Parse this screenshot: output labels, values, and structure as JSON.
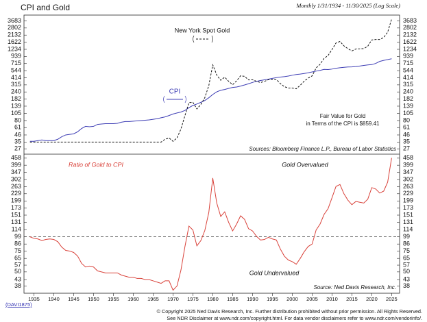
{
  "chart_data": [
    {
      "type": "line",
      "title": "CPI and Gold",
      "subtitle": "Monthly 1/31/1934 - 11/30/2025 (Log Scale)",
      "log_scale": true,
      "grid": false,
      "x": [
        1934,
        1935,
        1936,
        1937,
        1938,
        1939,
        1940,
        1941,
        1942,
        1943,
        1944,
        1945,
        1946,
        1947,
        1948,
        1949,
        1950,
        1951,
        1952,
        1953,
        1954,
        1955,
        1956,
        1957,
        1958,
        1959,
        1960,
        1961,
        1962,
        1963,
        1964,
        1965,
        1966,
        1967,
        1968,
        1969,
        1970,
        1971,
        1972,
        1973,
        1974,
        1975,
        1976,
        1977,
        1978,
        1979,
        1980,
        1981,
        1982,
        1983,
        1984,
        1985,
        1986,
        1987,
        1988,
        1989,
        1990,
        1991,
        1992,
        1993,
        1994,
        1995,
        1996,
        1997,
        1998,
        1999,
        2000,
        2001,
        2002,
        2003,
        2004,
        2005,
        2006,
        2007,
        2008,
        2009,
        2010,
        2011,
        2012,
        2013,
        2014,
        2015,
        2016,
        2017,
        2018,
        2019,
        2020,
        2021,
        2022,
        2023,
        2024,
        2025
      ],
      "xlim": [
        1932.5,
        2027
      ],
      "ylim": [
        22,
        4600
      ],
      "yticks": [
        27,
        35,
        46,
        61,
        80,
        105,
        139,
        182,
        240,
        315,
        414,
        544,
        715,
        939,
        1234,
        1622,
        2132,
        2802,
        3683
      ],
      "series": [
        {
          "name": "CPI",
          "color": "#3c3cb4",
          "line_style": "solid",
          "values": [
            36,
            36,
            37,
            38,
            37,
            37,
            37,
            39,
            43,
            46,
            47,
            48,
            52,
            59,
            64,
            63,
            64,
            69,
            70,
            71,
            71,
            71,
            72,
            75,
            77,
            77,
            78,
            79,
            80,
            81,
            82,
            84,
            86,
            89,
            92,
            97,
            103,
            107,
            111,
            118,
            131,
            143,
            151,
            161,
            173,
            192,
            218,
            241,
            256,
            264,
            275,
            285,
            290,
            301,
            314,
            329,
            346,
            361,
            372,
            383,
            393,
            404,
            416,
            425,
            432,
            442,
            456,
            469,
            477,
            488,
            501,
            518,
            534,
            549,
            571,
            568,
            578,
            596,
            608,
            618,
            627,
            628,
            636,
            650,
            665,
            678,
            686,
            718,
            776,
            808,
            831,
            859
          ]
        },
        {
          "name": "New York Spot Gold",
          "color": "#111111",
          "line_style": "dashed",
          "values": [
            35,
            35,
            35,
            35,
            35,
            35,
            35,
            35,
            35,
            35,
            35,
            35,
            35,
            35,
            35,
            35,
            35,
            35,
            35,
            35,
            35,
            35,
            35,
            35,
            35,
            35,
            35,
            35,
            35,
            35,
            35,
            35,
            35,
            35,
            39,
            41,
            36,
            41,
            58,
            97,
            159,
            161,
            125,
            148,
            193,
            306,
            680,
            460,
            376,
            424,
            361,
            317,
            368,
            447,
            437,
            381,
            383,
            362,
            344,
            360,
            384,
            384,
            388,
            331,
            294,
            279,
            279,
            271,
            310,
            363,
            409,
            445,
            603,
            695,
            872,
            972,
            1225,
            1572,
            1669,
            1411,
            1266,
            1160,
            1251,
            1257,
            1268,
            1393,
            1770,
            1799,
            1800,
            1943,
            2386,
            3950
          ]
        }
      ],
      "annotations": [
        "Fair Value for Gold",
        "in Terms of the CPI is $859.41"
      ],
      "source": "Sources: Bloomberg Finance L.P., Bureau of Labor Statistics"
    },
    {
      "type": "line",
      "log_scale": true,
      "grid": false,
      "x": [
        1934,
        1935,
        1936,
        1937,
        1938,
        1939,
        1940,
        1941,
        1942,
        1943,
        1944,
        1945,
        1946,
        1947,
        1948,
        1949,
        1950,
        1951,
        1952,
        1953,
        1954,
        1955,
        1956,
        1957,
        1958,
        1959,
        1960,
        1961,
        1962,
        1963,
        1964,
        1965,
        1966,
        1967,
        1968,
        1969,
        1970,
        1971,
        1972,
        1973,
        1974,
        1975,
        1976,
        1977,
        1978,
        1979,
        1980,
        1981,
        1982,
        1983,
        1984,
        1985,
        1986,
        1987,
        1988,
        1989,
        1990,
        1991,
        1992,
        1993,
        1994,
        1995,
        1996,
        1997,
        1998,
        1999,
        2000,
        2001,
        2002,
        2003,
        2004,
        2005,
        2006,
        2007,
        2008,
        2009,
        2010,
        2011,
        2012,
        2013,
        2014,
        2015,
        2016,
        2017,
        2018,
        2019,
        2020,
        2021,
        2022,
        2023,
        2024,
        2025
      ],
      "xlim": [
        1932.5,
        2027
      ],
      "xticks": [
        1935,
        1940,
        1945,
        1950,
        1955,
        1960,
        1965,
        1970,
        1975,
        1980,
        1985,
        1990,
        1995,
        2000,
        2005,
        2010,
        2015,
        2020,
        2025
      ],
      "ylim": [
        33,
        495
      ],
      "yticks": [
        38,
        43,
        50,
        57,
        65,
        75,
        86,
        99,
        114,
        131,
        151,
        173,
        199,
        229,
        263,
        302,
        347,
        399,
        458
      ],
      "reference_line": 99,
      "series": [
        {
          "name": "Ratio of Gold to CPI",
          "color": "#d9423a",
          "line_style": "solid",
          "values": [
            99,
            96,
            95,
            92,
            94,
            95,
            94,
            90,
            81,
            76,
            75,
            73,
            68,
            59,
            55,
            56,
            55,
            51,
            50,
            49,
            49,
            49,
            49,
            47,
            46,
            45,
            45,
            44,
            44,
            43,
            43,
            42,
            41,
            40,
            42,
            42,
            35,
            38,
            52,
            82,
            122,
            113,
            83,
            92,
            112,
            159,
            311,
            191,
            147,
            161,
            131,
            111,
            127,
            149,
            139,
            116,
            111,
            100,
            93,
            94,
            98,
            95,
            93,
            78,
            68,
            63,
            61,
            58,
            65,
            74,
            82,
            86,
            113,
            127,
            153,
            171,
            212,
            264,
            274,
            229,
            202,
            185,
            197,
            194,
            191,
            206,
            258,
            251,
            232,
            241,
            287,
            460
          ]
        }
      ],
      "annotations": [
        "Gold Overvalued",
        "Gold Undervalued"
      ],
      "source": "Source: Ned Davis Research, Inc."
    }
  ],
  "footer": {
    "code": "(DAVI1875)",
    "copyright": "© Copyright 2025 Ned Davis Research, Inc. Further distribution prohibited without prior permission. All Rights Reserved.",
    "disclaimer": "See NDR Disclaimer at www.ndr.com/copyright.html. For data vendor disclaimers refer to www.ndr.com/vendorinfo/."
  }
}
